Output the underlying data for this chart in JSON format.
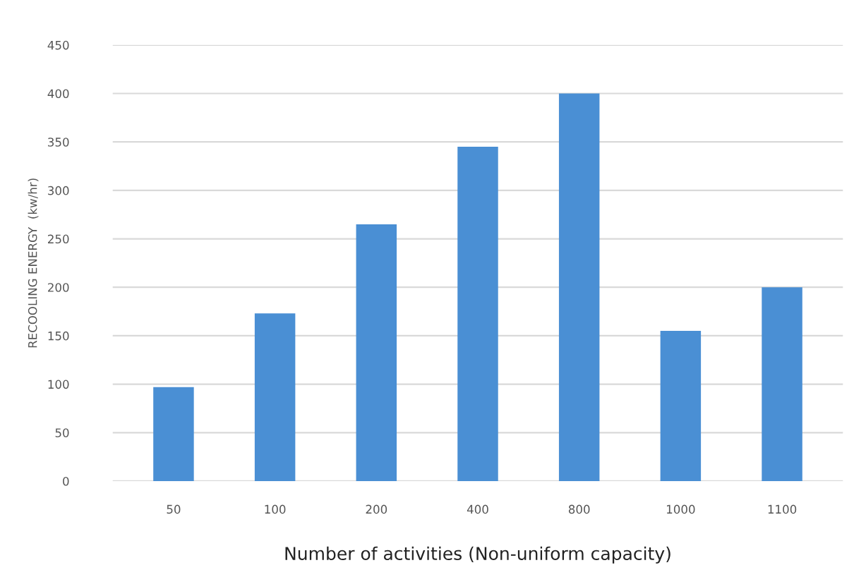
{
  "chart_data": {
    "type": "bar",
    "xlabel": "Number of activities (Non-uniform capacity)",
    "ylabel": "RECOOLING ENERGY  (kw/hr)",
    "categories": [
      "50",
      "100",
      "200",
      "400",
      "800",
      "1000",
      "1100"
    ],
    "values": [
      97,
      173,
      265,
      345,
      400,
      155,
      200
    ],
    "color": "#4a8fd4",
    "ylim": [
      0,
      450
    ],
    "yticks": [
      0,
      50,
      100,
      150,
      200,
      250,
      300,
      350,
      400,
      450
    ],
    "grid": "y",
    "legend": false
  }
}
